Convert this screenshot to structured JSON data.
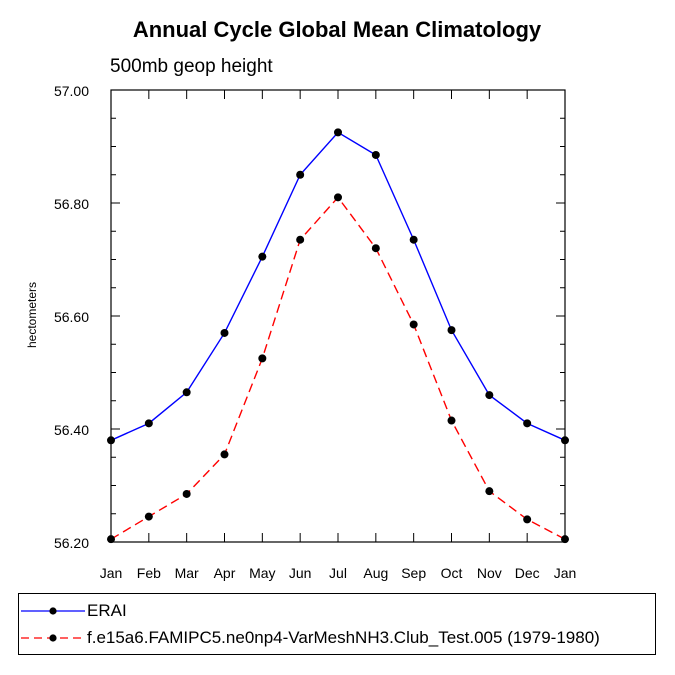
{
  "chart_data": {
    "type": "line",
    "title": "Annual Cycle Global Mean Climatology",
    "subtitle": "500mb geop height",
    "xlabel": "",
    "ylabel": "hectometers",
    "categories": [
      "Jan",
      "Feb",
      "Mar",
      "Apr",
      "May",
      "Jun",
      "Jul",
      "Aug",
      "Sep",
      "Oct",
      "Nov",
      "Dec",
      "Jan"
    ],
    "ylim": [
      56.2,
      57.0
    ],
    "yticks": [
      56.2,
      56.4,
      56.6,
      56.8,
      57.0
    ],
    "ytick_labels": [
      "56.20",
      "56.40",
      "56.60",
      "56.80",
      "57.00"
    ],
    "series": [
      {
        "name": "ERAI",
        "color": "#0000ff",
        "dashed": false,
        "values": [
          56.38,
          56.41,
          56.465,
          56.57,
          56.705,
          56.85,
          56.925,
          56.885,
          56.735,
          56.575,
          56.46,
          56.41,
          56.38
        ]
      },
      {
        "name": "f.e15a6.FAMIPC5.ne0np4-VarMeshNH3.Club_Test.005 (1979-1980)",
        "color": "#ff0000",
        "dashed": true,
        "values": [
          56.205,
          56.245,
          56.285,
          56.355,
          56.525,
          56.735,
          56.81,
          56.72,
          56.585,
          56.415,
          56.29,
          56.24,
          56.205
        ]
      }
    ]
  }
}
